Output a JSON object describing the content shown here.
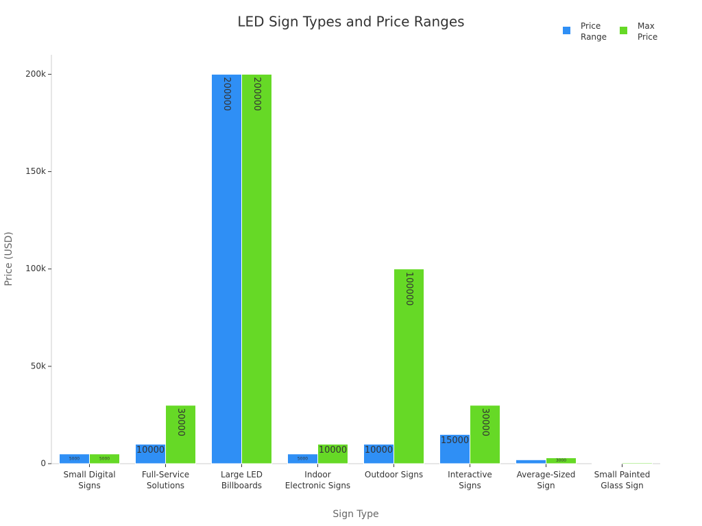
{
  "chart_data": {
    "type": "bar",
    "title": "LED Sign Types and Price Ranges",
    "x_label": "Sign Type",
    "y_label": "Price (USD)",
    "categories": [
      "Small Digital Signs",
      "Full-Service Solutions",
      "Large LED Billboards",
      "Indoor Electronic Signs",
      "Outdoor Signs",
      "Interactive Signs",
      "Average-Sized Sign",
      "Small Painted Glass Sign"
    ],
    "series": [
      {
        "name": "Price Range",
        "color": "#2f8ff5",
        "values": [
          5000,
          10000,
          200000,
          5000,
          10000,
          15000,
          2000,
          300
        ]
      },
      {
        "name": "Max Price",
        "color": "#66d926",
        "values": [
          5000,
          30000,
          200000,
          10000,
          100000,
          30000,
          3000,
          500
        ]
      }
    ],
    "ylim": [
      0,
      210000
    ],
    "yticks": [
      {
        "value": 0,
        "label": "0"
      },
      {
        "value": 50000,
        "label": "50k"
      },
      {
        "value": 100000,
        "label": "100k"
      },
      {
        "value": 150000,
        "label": "150k"
      },
      {
        "value": 200000,
        "label": "200k"
      }
    ],
    "legend": "top-right"
  }
}
